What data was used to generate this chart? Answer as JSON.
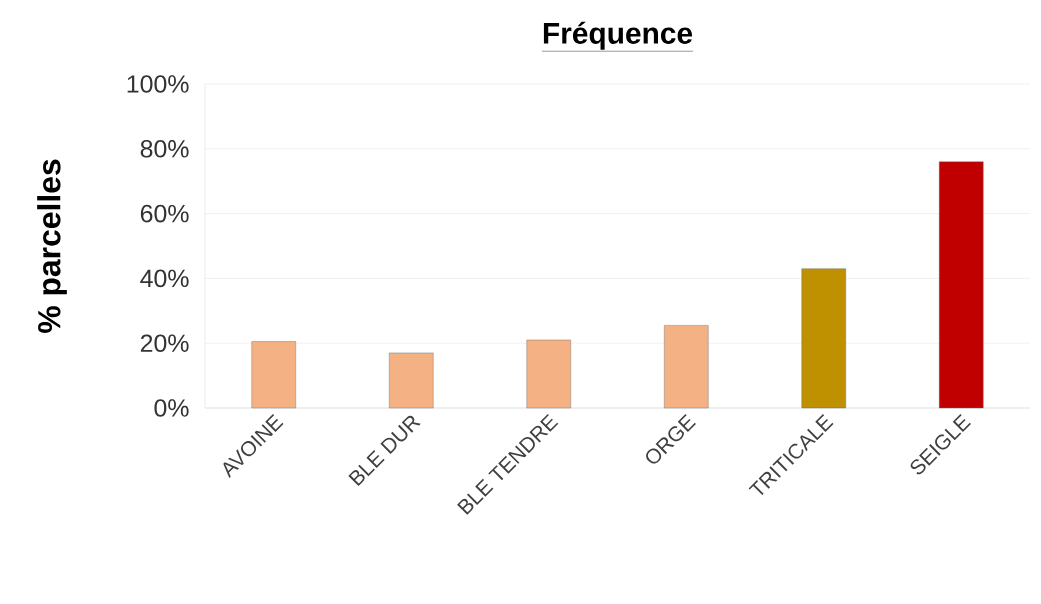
{
  "chart_data": {
    "type": "bar",
    "title": "Fréquence",
    "ylabel": "% parcelles",
    "categories": [
      "AVOINE",
      "BLE DUR",
      "BLE TENDRE",
      "ORGE",
      "TRITICALE",
      "SEIGLE"
    ],
    "values": [
      20.5,
      17,
      21,
      25.5,
      43,
      76
    ],
    "colors": [
      "#f4b183",
      "#f4b183",
      "#f4b183",
      "#f4b183",
      "#bf9000",
      "#c00000"
    ],
    "ylim": [
      0,
      100
    ],
    "yticks": [
      {
        "value": 0,
        "label": "0%"
      },
      {
        "value": 20,
        "label": "20%"
      },
      {
        "value": 40,
        "label": "40%"
      },
      {
        "value": 60,
        "label": "60%"
      },
      {
        "value": 80,
        "label": "80%"
      },
      {
        "value": 100,
        "label": "100%"
      }
    ],
    "grid": "y"
  }
}
